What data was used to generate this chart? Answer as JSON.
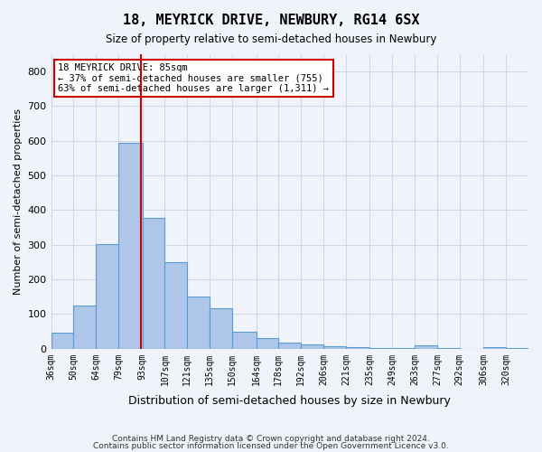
{
  "title": "18, MEYRICK DRIVE, NEWBURY, RG14 6SX",
  "subtitle": "Size of property relative to semi-detached houses in Newbury",
  "xlabel": "Distribution of semi-detached houses by size in Newbury",
  "ylabel": "Number of semi-detached properties",
  "categories": [
    "36sqm",
    "50sqm",
    "64sqm",
    "79sqm",
    "93sqm",
    "107sqm",
    "121sqm",
    "135sqm",
    "150sqm",
    "164sqm",
    "178sqm",
    "192sqm",
    "206sqm",
    "221sqm",
    "235sqm",
    "249sqm",
    "263sqm",
    "277sqm",
    "292sqm",
    "306sqm",
    "320sqm"
  ],
  "values": [
    47,
    125,
    303,
    595,
    377,
    249,
    152,
    118,
    50,
    30,
    18,
    13,
    6,
    5,
    2,
    2,
    10,
    2,
    0,
    5,
    3
  ],
  "bar_color": "#aec6e8",
  "bar_edge_color": "#5b9bd5",
  "grid_color": "#d0d8e8",
  "background_color": "#f0f4fa",
  "vline_x": 85,
  "vline_color": "#cc0000",
  "annotation_text": "18 MEYRICK DRIVE: 85sqm\n← 37% of semi-detached houses are smaller (755)\n63% of semi-detached houses are larger (1,311) →",
  "annotation_box_color": "#ffffff",
  "annotation_box_edge_color": "#cc0000",
  "footer1": "Contains HM Land Registry data © Crown copyright and database right 2024.",
  "footer2": "Contains public sector information licensed under the Open Government Licence v3.0.",
  "ylim": [
    0,
    850
  ],
  "bin_edges": [
    29,
    43,
    57,
    71,
    86,
    100,
    114,
    128,
    142,
    157,
    171,
    185,
    199,
    213,
    228,
    242,
    256,
    270,
    284,
    299,
    313,
    327
  ]
}
